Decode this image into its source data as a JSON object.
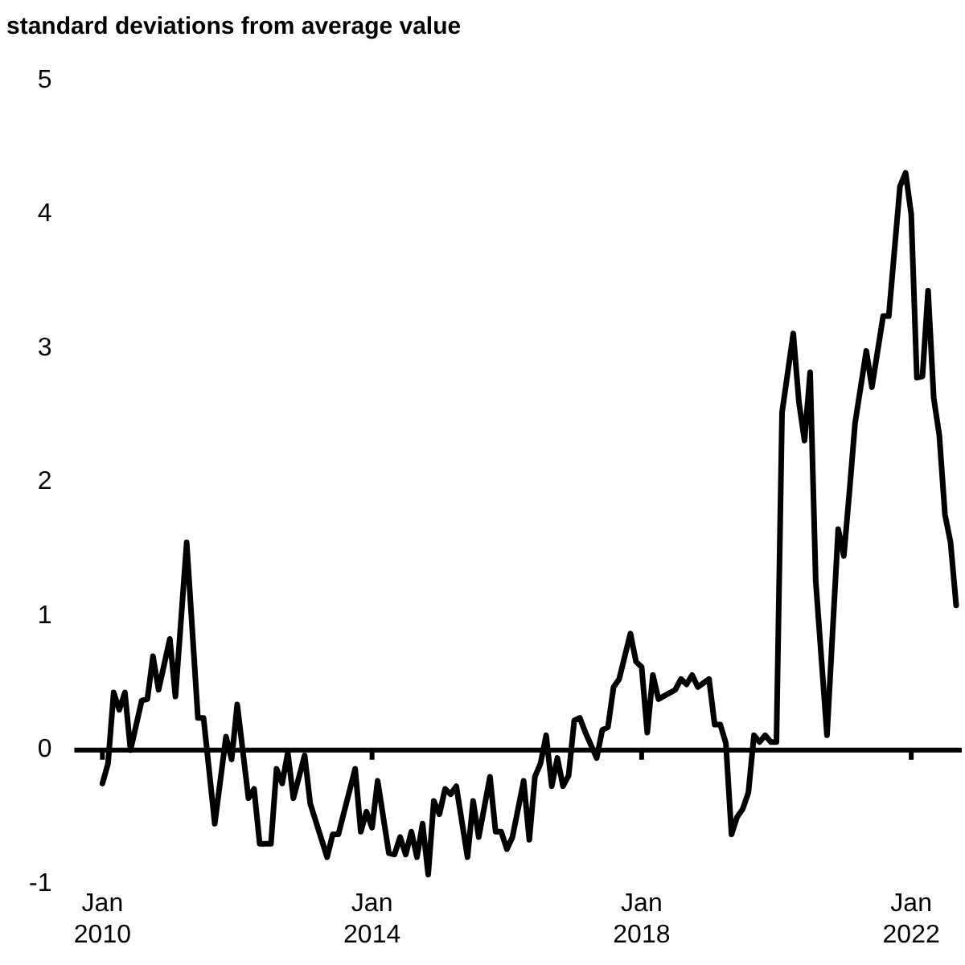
{
  "chart_data": {
    "type": "line",
    "ylabel": "standard deviations from average value",
    "x": [
      "2010-01",
      "2010-02",
      "2010-03",
      "2010-04",
      "2010-05",
      "2010-06",
      "2010-08",
      "2010-09",
      "2010-10",
      "2010-11",
      "2011-01",
      "2011-02",
      "2011-04",
      "2011-06",
      "2011-07",
      "2011-09",
      "2011-11",
      "2011-12",
      "2012-01",
      "2012-03",
      "2012-04",
      "2012-05",
      "2012-07",
      "2012-08",
      "2012-09",
      "2012-10",
      "2012-11",
      "2013-01",
      "2013-02",
      "2013-05",
      "2013-06",
      "2013-07",
      "2013-10",
      "2013-11",
      "2013-12",
      "2014-01",
      "2014-02",
      "2014-04",
      "2014-05",
      "2014-06",
      "2014-07",
      "2014-08",
      "2014-09",
      "2014-10",
      "2014-11",
      "2014-12",
      "2015-01",
      "2015-02",
      "2015-03",
      "2015-04",
      "2015-06",
      "2015-07",
      "2015-08",
      "2015-10",
      "2015-11",
      "2015-12",
      "2016-01",
      "2016-02",
      "2016-04",
      "2016-05",
      "2016-06",
      "2016-07",
      "2016-08",
      "2016-09",
      "2016-10",
      "2016-11",
      "2016-12",
      "2017-01",
      "2017-02",
      "2017-03",
      "2017-05",
      "2017-06",
      "2017-07",
      "2017-08",
      "2017-09",
      "2017-11",
      "2017-12",
      "2018-01",
      "2018-02",
      "2018-03",
      "2018-04",
      "2018-07",
      "2018-08",
      "2018-09",
      "2018-10",
      "2018-11",
      "2019-01",
      "2019-02",
      "2019-03",
      "2019-04",
      "2019-05",
      "2019-06",
      "2019-07",
      "2019-08",
      "2019-09",
      "2019-10",
      "2019-11",
      "2019-12",
      "2020-01",
      "2020-02",
      "2020-04",
      "2020-05",
      "2020-06",
      "2020-07",
      "2020-08",
      "2020-10",
      "2020-12",
      "2021-01",
      "2021-02",
      "2021-03",
      "2021-05",
      "2021-06",
      "2021-08",
      "2021-09",
      "2021-11",
      "2021-12",
      "2022-01",
      "2022-02",
      "2022-03",
      "2022-04",
      "2022-05",
      "2022-06",
      "2022-07",
      "2022-08",
      "2022-09"
    ],
    "series": [
      {
        "color": "#000000",
        "values": [
          -0.25,
          -0.1,
          0.43,
          0.3,
          0.43,
          0,
          0.37,
          0.38,
          0.7,
          0.45,
          0.83,
          0.4,
          1.55,
          0.24,
          0.24,
          -0.55,
          0.1,
          -0.07,
          0.34,
          -0.36,
          -0.29,
          -0.7,
          -0.7,
          -0.14,
          -0.25,
          -0.02,
          -0.36,
          -0.04,
          -0.4,
          -0.8,
          -0.63,
          -0.63,
          -0.14,
          -0.61,
          -0.46,
          -0.58,
          -0.23,
          -0.77,
          -0.78,
          -0.65,
          -0.78,
          -0.61,
          -0.8,
          -0.55,
          -0.93,
          -0.38,
          -0.48,
          -0.29,
          -0.33,
          -0.27,
          -0.8,
          -0.38,
          -0.65,
          -0.2,
          -0.61,
          -0.61,
          -0.74,
          -0.65,
          -0.23,
          -0.67,
          -0.2,
          -0.1,
          0.11,
          -0.27,
          -0.06,
          -0.27,
          -0.19,
          0.22,
          0.24,
          0.13,
          -0.06,
          0.15,
          0.17,
          0.47,
          0.53,
          0.87,
          0.66,
          0.62,
          0.13,
          0.56,
          0.38,
          0.45,
          0.53,
          0.49,
          0.56,
          0.47,
          0.53,
          0.19,
          0.19,
          0.05,
          -0.63,
          -0.5,
          -0.44,
          -0.32,
          0.11,
          0.06,
          0.11,
          0.06,
          0.06,
          2.52,
          3.11,
          2.6,
          2.31,
          2.82,
          1.26,
          0.11,
          1.65,
          1.45,
          1.93,
          2.44,
          2.98,
          2.71,
          3.24,
          3.24,
          4.21,
          4.31,
          4.0,
          2.78,
          2.79,
          3.43,
          2.63,
          2.35,
          1.76,
          1.55,
          1.08
        ]
      }
    ],
    "xlim": [
      "2009-08",
      "2022-10"
    ],
    "xticks": [
      {
        "value": "2010-01",
        "label": "Jan 2010"
      },
      {
        "value": "2014-01",
        "label": "Jan 2014"
      },
      {
        "value": "2018-01",
        "label": "Jan 2018"
      },
      {
        "value": "2022-01",
        "label": "Jan 2022"
      }
    ],
    "ylim": [
      -1,
      5
    ],
    "yticks": [
      -1,
      0,
      1,
      2,
      3,
      4,
      5
    ],
    "ref_lines": [
      {
        "axis": "y",
        "value": 0,
        "color": "#000000"
      }
    ],
    "grid": false,
    "legend": false,
    "marker": "none",
    "line_style": "solid"
  }
}
